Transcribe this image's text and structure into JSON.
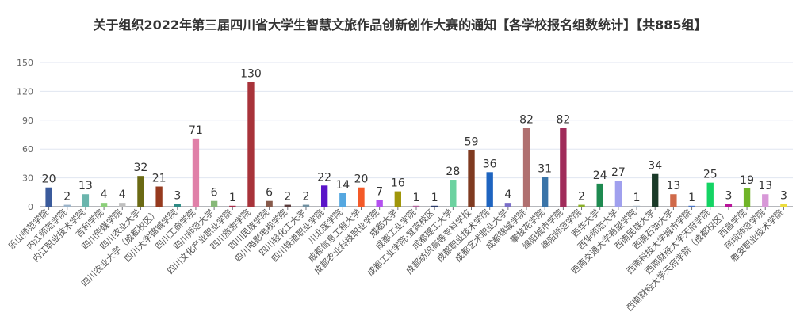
{
  "chart_data": {
    "type": "bar",
    "title": "关于组织2022年第三届四川省大学生智慧文旅作品创新创作大赛的通知【各学校报名组数统计】【共885组】",
    "ylim": [
      0,
      150
    ],
    "yticks": [
      0,
      30,
      60,
      90,
      120,
      150
    ],
    "grid": true,
    "categories": [
      "乐山师范学院",
      "内江师范学院",
      "内江职业技术学院",
      "吉利学院",
      "四川传媒学院",
      "四川农业大学",
      "四川农业大学（成都校区）",
      "四川大学锦城学院",
      "四川工商学院",
      "四川师范大学",
      "四川文化产业职业学院",
      "四川旅游学院",
      "四川民族学院",
      "四川电影电视学院",
      "四川轻化工大学",
      "四川铁道职业学院",
      "川北医学院",
      "成都信息工程大学",
      "成都农业科技职业学院",
      "成都大学",
      "成都工业学院",
      "成都工业学院·宜宾校区",
      "成都理工大学",
      "成都纺织高等专科学校",
      "成都职业技术学院",
      "成都艺术职业大学",
      "成都锦城学院",
      "攀枝花学院",
      "绵阳城市学院",
      "绵阳师范学院",
      "西华大学",
      "西华师范大学",
      "西南交通大学希望学院",
      "西南民族大学",
      "西南石油大学",
      "西南科技大学城市学院",
      "西南财经大学天府学院",
      "西南财经大学天府学院（成都校区）",
      "西昌学院",
      "阿坝师范学院",
      "雅安职业技术学院"
    ],
    "values": [
      20,
      2,
      13,
      4,
      4,
      32,
      21,
      3,
      71,
      6,
      1,
      130,
      6,
      2,
      2,
      22,
      14,
      20,
      7,
      16,
      1,
      1,
      28,
      59,
      36,
      4,
      82,
      31,
      82,
      2,
      24,
      27,
      1,
      34,
      13,
      1,
      25,
      3,
      19,
      13,
      3
    ],
    "colors": [
      "#3b5b9c",
      "#9ab3c9",
      "#6bb5ad",
      "#8ccf7a",
      "#c0c0c0",
      "#6b6a14",
      "#963a1e",
      "#2d8a84",
      "#e080a8",
      "#86b878",
      "#a82c4b",
      "#a8333a",
      "#875a4b",
      "#5a3c3c",
      "#6f8fa0",
      "#5a14c8",
      "#55a7e0",
      "#f45a28",
      "#b450f0",
      "#a0960a",
      "#b0609a",
      "#2a3a6a",
      "#6cd2a0",
      "#7f3a20",
      "#1e64c0",
      "#7a6ec8",
      "#b07070",
      "#3a74a8",
      "#a02c5a",
      "#8ab028",
      "#1e8a50",
      "#a0a0ee",
      "#a8b4c0",
      "#1a3a28",
      "#d06a4a",
      "#4a76c8",
      "#14d464",
      "#b8149a",
      "#70b428",
      "#d898d8",
      "#ecdc3c"
    ]
  }
}
